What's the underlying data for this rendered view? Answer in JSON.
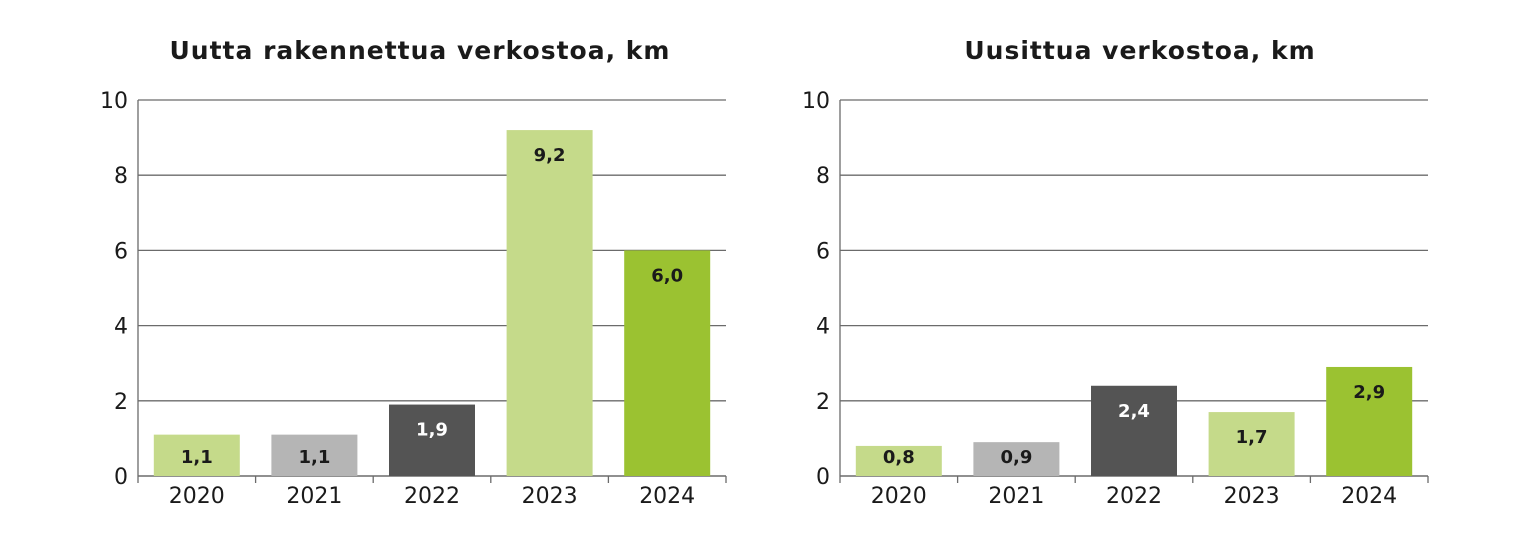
{
  "chart_data": [
    {
      "type": "bar",
      "title": "Uutta rakennettua verkostoa, km",
      "categories": [
        "2020",
        "2021",
        "2022",
        "2023",
        "2024"
      ],
      "values": [
        1.1,
        1.1,
        1.9,
        9.2,
        6.0
      ],
      "value_labels": [
        "1,1",
        "1,1",
        "1,9",
        "9,2",
        "6,0"
      ],
      "colors": [
        "#c5da8a",
        "#b5b5b5",
        "#545454",
        "#c5da8a",
        "#9bc231"
      ],
      "label_colors": [
        "#1a1a1a",
        "#1a1a1a",
        "#ffffff",
        "#1a1a1a",
        "#1a1a1a"
      ],
      "yticks": [
        "0",
        "2",
        "4",
        "6",
        "8",
        "10"
      ],
      "ylim": [
        0,
        10
      ],
      "grid": true
    },
    {
      "type": "bar",
      "title": "Uusittua verkostoa, km",
      "categories": [
        "2020",
        "2021",
        "2022",
        "2023",
        "2024"
      ],
      "values": [
        0.8,
        0.9,
        2.4,
        1.7,
        2.9
      ],
      "value_labels": [
        "0,8",
        "0,9",
        "2,4",
        "1,7",
        "2,9"
      ],
      "colors": [
        "#c5da8a",
        "#b5b5b5",
        "#545454",
        "#c5da8a",
        "#9bc231"
      ],
      "label_colors": [
        "#1a1a1a",
        "#1a1a1a",
        "#ffffff",
        "#1a1a1a",
        "#1a1a1a"
      ],
      "yticks": [
        "0",
        "2",
        "4",
        "6",
        "8",
        "10"
      ],
      "ylim": [
        0,
        10
      ],
      "grid": true
    }
  ]
}
